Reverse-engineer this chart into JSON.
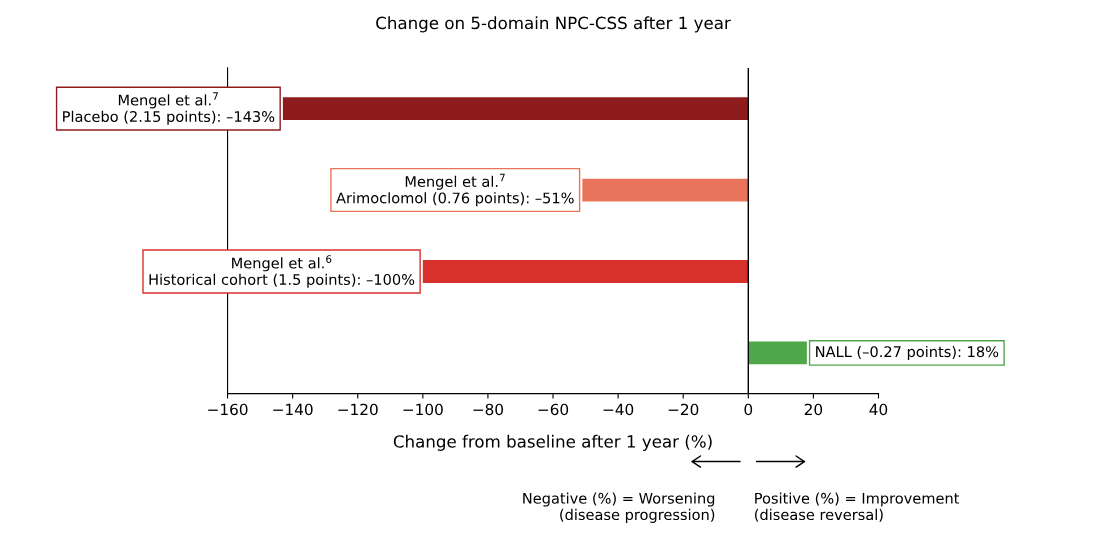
{
  "chart_data": {
    "type": "bar",
    "orientation": "horizontal",
    "title": "Change on 5-domain NPC-CSS after 1 year",
    "xlabel": "Change from baseline after 1 year (%)",
    "categories": [
      null,
      null,
      null,
      null
    ],
    "values": [
      -143,
      -51,
      -100,
      18
    ],
    "colors": [
      "#8e1c1c",
      "#e8745c",
      "#d8302a",
      "#4ea84a"
    ],
    "value_labels": [
      "Mengel et al.$^{7}$\nPlacebo (2.15 points): –143%",
      "Mengel et al.$^{7}$\nArimoclomol (0.76 points): –51%",
      "Mengel et al.$^{6}$\nHistorical cohort (1.5 points): –100%",
      "NALL (–0.27 points): 18%"
    ],
    "xlim": [
      -160,
      40
    ],
    "xticks": [
      {
        "value": -160,
        "label": "−160"
      },
      {
        "value": -140,
        "label": "−140"
      },
      {
        "value": -120,
        "label": "−120"
      },
      {
        "value": -100,
        "label": "−100"
      },
      {
        "value": -80,
        "label": "−80"
      },
      {
        "value": -60,
        "label": "−60"
      },
      {
        "value": -40,
        "label": "−40"
      },
      {
        "value": -20,
        "label": "−20"
      },
      0,
      20,
      40
    ],
    "ref_lines": [
      {
        "axis": "x",
        "value": 0,
        "color": "#000000"
      }
    ],
    "annotations": [
      "Negative (%) = Worsening\n(disease progression)",
      "Positive (%) = Improvement\n(disease reversal)"
    ],
    "grid": false,
    "legend": false
  }
}
